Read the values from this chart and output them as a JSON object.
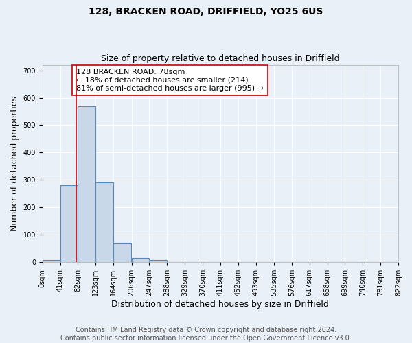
{
  "title": "128, BRACKEN ROAD, DRIFFIELD, YO25 6US",
  "subtitle": "Size of property relative to detached houses in Driffield",
  "xlabel": "Distribution of detached houses by size in Driffield",
  "ylabel": "Number of detached properties",
  "footer_line1": "Contains HM Land Registry data © Crown copyright and database right 2024.",
  "footer_line2": "Contains public sector information licensed under the Open Government Licence v3.0.",
  "bin_edges": [
    0,
    41,
    82,
    123,
    164,
    206,
    247,
    288,
    329,
    370,
    411,
    452,
    493,
    535,
    576,
    617,
    658,
    699,
    740,
    781,
    822
  ],
  "bar_heights": [
    8,
    280,
    570,
    292,
    70,
    15,
    9,
    0,
    0,
    0,
    0,
    0,
    0,
    0,
    0,
    0,
    0,
    0,
    0,
    0
  ],
  "bar_color": "#c8d8e8",
  "bar_edge_color": "#5588bb",
  "vline_x": 78,
  "vline_color": "#cc0000",
  "annotation_text": "128 BRACKEN ROAD: 78sqm\n← 18% of detached houses are smaller (214)\n81% of semi-detached houses are larger (995) →",
  "annotation_box_color": "white",
  "annotation_box_edge_color": "#cc0000",
  "ylim": [
    0,
    720
  ],
  "yticks": [
    0,
    100,
    200,
    300,
    400,
    500,
    600,
    700
  ],
  "xlim": [
    0,
    822
  ],
  "tick_labels": [
    "0sqm",
    "41sqm",
    "82sqm",
    "123sqm",
    "164sqm",
    "206sqm",
    "247sqm",
    "288sqm",
    "329sqm",
    "370sqm",
    "411sqm",
    "452sqm",
    "493sqm",
    "535sqm",
    "576sqm",
    "617sqm",
    "658sqm",
    "699sqm",
    "740sqm",
    "781sqm",
    "822sqm"
  ],
  "bg_color": "#eaf0f8",
  "plot_bg_color": "#eaf0f8",
  "grid_color": "white",
  "title_fontsize": 10,
  "subtitle_fontsize": 9,
  "axis_label_fontsize": 9,
  "tick_fontsize": 7,
  "annotation_fontsize": 8,
  "footer_fontsize": 7
}
